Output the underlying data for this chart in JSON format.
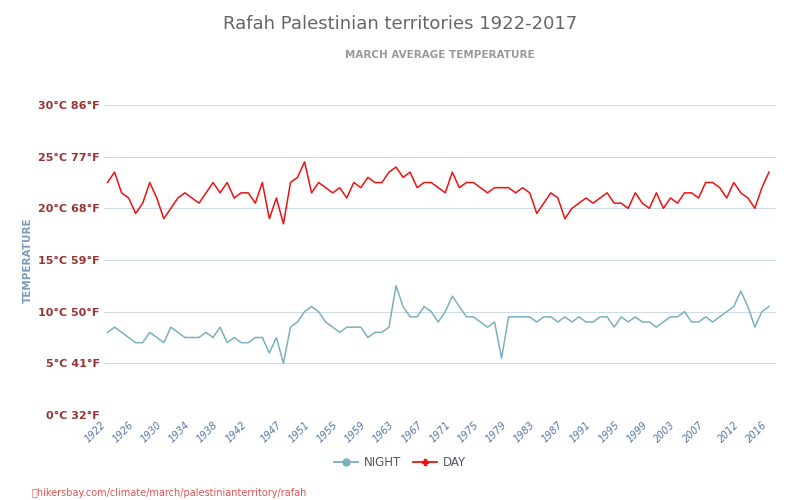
{
  "title": "Rafah Palestinian territories 1922-2017",
  "subtitle": "MARCH AVERAGE TEMPERATURE",
  "ylabel": "TEMPERATURE",
  "footer": "hikersbay.com/climate/march/palestinianterritory/rafah",
  "background_color": "#ffffff",
  "grid_color": "#ccd9e8",
  "title_color": "#666666",
  "subtitle_color": "#999999",
  "ylabel_color": "#7a9ab5",
  "tick_color_y": "#993333",
  "tick_color_x": "#5577aa",
  "axis_line_color": "#aaccdd",
  "day_color": "#ee1111",
  "night_color": "#7ab0bf",
  "legend_color": "#555566",
  "years": [
    1922,
    1923,
    1924,
    1925,
    1926,
    1927,
    1928,
    1929,
    1930,
    1931,
    1932,
    1933,
    1934,
    1935,
    1936,
    1937,
    1938,
    1939,
    1940,
    1941,
    1942,
    1943,
    1944,
    1945,
    1946,
    1947,
    1948,
    1949,
    1950,
    1951,
    1952,
    1953,
    1954,
    1955,
    1956,
    1957,
    1958,
    1959,
    1960,
    1961,
    1962,
    1963,
    1964,
    1965,
    1966,
    1967,
    1968,
    1969,
    1970,
    1971,
    1972,
    1973,
    1974,
    1975,
    1976,
    1977,
    1978,
    1979,
    1980,
    1981,
    1982,
    1983,
    1984,
    1985,
    1986,
    1987,
    1988,
    1989,
    1990,
    1991,
    1992,
    1993,
    1994,
    1995,
    1996,
    1997,
    1998,
    1999,
    2000,
    2001,
    2002,
    2003,
    2004,
    2005,
    2006,
    2007,
    2008,
    2009,
    2010,
    2011,
    2012,
    2013,
    2014,
    2015,
    2016
  ],
  "day_temps": [
    22.5,
    23.5,
    21.5,
    21.0,
    19.5,
    20.5,
    22.5,
    21.0,
    19.0,
    20.0,
    21.0,
    21.5,
    21.0,
    20.5,
    21.5,
    22.5,
    21.5,
    22.5,
    21.0,
    21.5,
    21.5,
    20.5,
    22.5,
    19.0,
    21.0,
    18.5,
    22.5,
    23.0,
    24.5,
    21.5,
    22.5,
    22.0,
    21.5,
    22.0,
    21.0,
    22.5,
    22.0,
    23.0,
    22.5,
    22.5,
    23.5,
    24.0,
    23.0,
    23.5,
    22.0,
    22.5,
    22.5,
    22.0,
    21.5,
    23.5,
    22.0,
    22.5,
    22.5,
    22.0,
    21.5,
    22.0,
    22.0,
    22.0,
    21.5,
    22.0,
    21.5,
    19.5,
    20.5,
    21.5,
    21.0,
    19.0,
    20.0,
    20.5,
    21.0,
    20.5,
    21.0,
    21.5,
    20.5,
    20.5,
    20.0,
    21.5,
    20.5,
    20.0,
    21.5,
    20.0,
    21.0,
    20.5,
    21.5,
    21.5,
    21.0,
    22.5,
    22.5,
    22.0,
    21.0,
    22.5,
    21.5,
    21.0,
    20.0,
    22.0,
    23.5
  ],
  "night_temps": [
    8.0,
    8.5,
    8.0,
    7.5,
    7.0,
    7.0,
    8.0,
    7.5,
    7.0,
    8.5,
    8.0,
    7.5,
    7.5,
    7.5,
    8.0,
    7.5,
    8.5,
    7.0,
    7.5,
    7.0,
    7.0,
    7.5,
    7.5,
    6.0,
    7.5,
    5.0,
    8.5,
    9.0,
    10.0,
    10.5,
    10.0,
    9.0,
    8.5,
    8.0,
    8.5,
    8.5,
    8.5,
    7.5,
    8.0,
    8.0,
    8.5,
    12.5,
    10.5,
    9.5,
    9.5,
    10.5,
    10.0,
    9.0,
    10.0,
    11.5,
    10.5,
    9.5,
    9.5,
    9.0,
    8.5,
    9.0,
    5.5,
    9.5,
    9.5,
    9.5,
    9.5,
    9.0,
    9.5,
    9.5,
    9.0,
    9.5,
    9.0,
    9.5,
    9.0,
    9.0,
    9.5,
    9.5,
    8.5,
    9.5,
    9.0,
    9.5,
    9.0,
    9.0,
    8.5,
    9.0,
    9.5,
    9.5,
    10.0,
    9.0,
    9.0,
    9.5,
    9.0,
    9.5,
    10.0,
    10.5,
    12.0,
    10.5,
    8.5,
    10.0,
    10.5
  ],
  "ylim": [
    0,
    30
  ],
  "yticks_c": [
    0,
    5,
    10,
    15,
    20,
    25,
    30
  ],
  "yticks_f": [
    32,
    41,
    50,
    59,
    68,
    77,
    86
  ],
  "xlim": [
    1921.5,
    2017
  ],
  "xticks": [
    1922,
    1926,
    1930,
    1934,
    1938,
    1942,
    1947,
    1951,
    1955,
    1959,
    1963,
    1967,
    1971,
    1975,
    1979,
    1983,
    1987,
    1991,
    1995,
    1999,
    2003,
    2007,
    2012,
    2016
  ]
}
